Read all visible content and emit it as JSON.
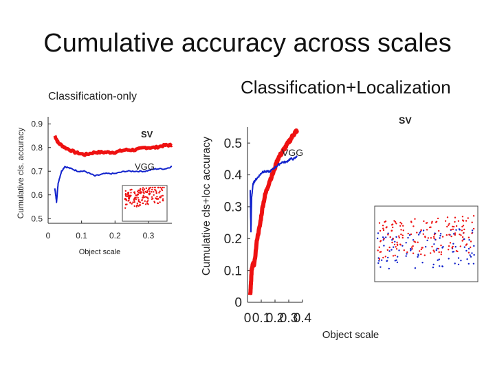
{
  "title": "Cumulative accuracy across scales",
  "colors": {
    "red": "#ee1111",
    "blue": "#1122cc",
    "axis": "#222222"
  },
  "chart_data": [
    {
      "type": "line",
      "title": "Classification-only",
      "xlabel": "Object scale",
      "ylabel": "Cumulative cls. accuracy",
      "xlim": [
        0,
        0.37
      ],
      "ylim": [
        0.48,
        0.93
      ],
      "xticks": [
        "0",
        "0.1",
        "0.2",
        "0.3"
      ],
      "yticks": [
        "0.9",
        "0.8",
        "0.7",
        "0.6",
        "0.5"
      ],
      "xtick_values": [
        0,
        0.1,
        0.2,
        0.3
      ],
      "ytick_values": [
        0.9,
        0.8,
        0.7,
        0.6,
        0.5
      ],
      "series": [
        {
          "name": "SV",
          "color": "#ee1111",
          "x": [
            0.02,
            0.03,
            0.05,
            0.08,
            0.11,
            0.14,
            0.17,
            0.2,
            0.23,
            0.26,
            0.29,
            0.32,
            0.35,
            0.37
          ],
          "y": [
            0.85,
            0.82,
            0.8,
            0.78,
            0.77,
            0.78,
            0.78,
            0.78,
            0.79,
            0.79,
            0.8,
            0.8,
            0.81,
            0.81
          ]
        },
        {
          "name": "VGG",
          "color": "#1122cc",
          "x": [
            0.02,
            0.025,
            0.03,
            0.04,
            0.05,
            0.07,
            0.09,
            0.11,
            0.14,
            0.17,
            0.2,
            0.23,
            0.26,
            0.29,
            0.32,
            0.35,
            0.37
          ],
          "y": [
            0.63,
            0.57,
            0.65,
            0.7,
            0.72,
            0.71,
            0.7,
            0.7,
            0.68,
            0.69,
            0.69,
            0.7,
            0.7,
            0.7,
            0.71,
            0.71,
            0.72
          ]
        }
      ],
      "annotations": [
        "SV",
        "VGG"
      ]
    },
    {
      "type": "line",
      "title": "Classification+Localization",
      "xlabel": "Object scale",
      "ylabel": "Cumulative cls+loc accuracy",
      "xlim": [
        0,
        0.4
      ],
      "ylim": [
        0,
        0.55
      ],
      "xticks": [
        "0",
        "0.1",
        "0.2",
        "0.3",
        "0.4"
      ],
      "yticks": [
        "0.5",
        "0.4",
        "0.3",
        "0.2",
        "0.1",
        "0"
      ],
      "xtick_values": [
        0,
        0.1,
        0.2,
        0.3,
        0.4
      ],
      "ytick_values": [
        0.5,
        0.4,
        0.3,
        0.2,
        0.1,
        0
      ],
      "series": [
        {
          "name": "SV",
          "color": "#ee1111",
          "x": [
            0.02,
            0.025,
            0.03,
            0.04,
            0.05,
            0.07,
            0.09,
            0.11,
            0.13,
            0.16,
            0.19,
            0.22,
            0.25,
            0.28,
            0.31,
            0.34,
            0.36
          ],
          "y": [
            0.02,
            0.06,
            0.1,
            0.12,
            0.12,
            0.2,
            0.24,
            0.3,
            0.34,
            0.38,
            0.41,
            0.45,
            0.47,
            0.49,
            0.51,
            0.53,
            0.54
          ]
        },
        {
          "name": "VGG",
          "color": "#1122cc",
          "x": [
            0.02,
            0.025,
            0.03,
            0.04,
            0.05,
            0.07,
            0.09,
            0.11,
            0.13,
            0.16,
            0.19,
            0.22,
            0.25,
            0.28,
            0.31,
            0.34,
            0.36
          ],
          "y": [
            0.35,
            0.22,
            0.33,
            0.37,
            0.38,
            0.39,
            0.4,
            0.41,
            0.41,
            0.41,
            0.42,
            0.43,
            0.44,
            0.44,
            0.45,
            0.45,
            0.46
          ]
        }
      ],
      "annotations": [
        "SV",
        "VGG"
      ]
    }
  ]
}
